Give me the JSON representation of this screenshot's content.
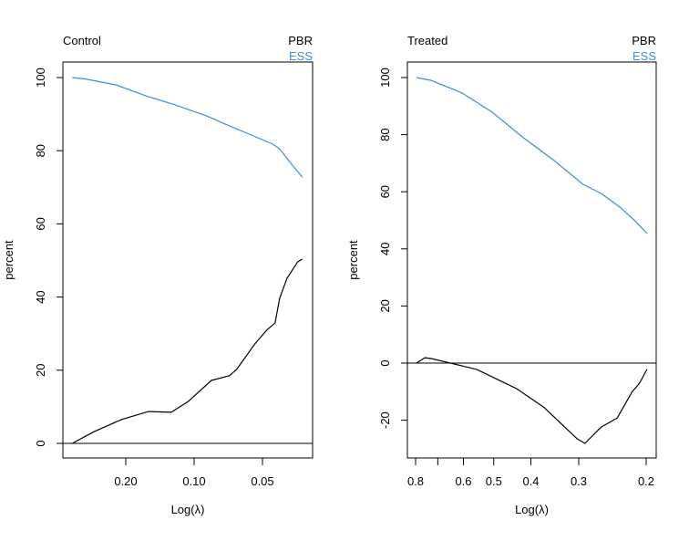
{
  "colors": {
    "PBR": "#000000",
    "ESS": "#3d8be0"
  },
  "chart_data": [
    {
      "type": "line",
      "title": "Control",
      "legend": [
        "PBR",
        "ESS"
      ],
      "legend_placement": "top-right",
      "xlabel": "Log(λ)",
      "ylabel": "percent",
      "x_scale": "log, reversed",
      "xticks": [
        0.2,
        0.1,
        0.05
      ],
      "xtick_labels": [
        "0.20",
        "0.10",
        "0.05"
      ],
      "xlim": [
        0.344,
        0.0334
      ],
      "yticks": [
        0,
        20,
        40,
        60,
        80,
        100
      ],
      "ylim": [
        -4,
        104
      ],
      "reference_line_y": 0,
      "grid": false,
      "series": [
        {
          "name": "PBR",
          "x": [
            0.344,
            0.276,
            0.209,
            0.159,
            0.126,
            0.106,
            0.084,
            0.07,
            0.065,
            0.054,
            0.048,
            0.044,
            0.042,
            0.039,
            0.035,
            0.0334
          ],
          "y": [
            0,
            3.2,
            6.5,
            8.7,
            8.5,
            11.5,
            17.2,
            18.5,
            20.2,
            27.2,
            30.9,
            32.9,
            39.7,
            45.1,
            49.6,
            50.4
          ]
        },
        {
          "name": "ESS",
          "x": [
            0.344,
            0.3,
            0.221,
            0.163,
            0.121,
            0.088,
            0.07,
            0.056,
            0.045,
            0.042,
            0.038,
            0.0334
          ],
          "y": [
            100,
            99.6,
            98,
            95,
            92.5,
            89.5,
            86.8,
            84.3,
            81.8,
            80.5,
            77,
            72.8
          ]
        }
      ]
    },
    {
      "type": "line",
      "title": "Treated",
      "legend": [
        "PBR",
        "ESS"
      ],
      "legend_placement": "top-right",
      "xlabel": "Log(λ)",
      "ylabel": "percent",
      "x_scale": "log, reversed",
      "xticks": [
        0.8,
        0.7,
        0.6,
        0.5,
        0.4,
        0.3,
        0.2
      ],
      "xtick_labels": [
        "0.8",
        "",
        "0.6",
        "0.5",
        "0.4",
        "0.3",
        "0.2"
      ],
      "xlim": [
        0.83,
        0.19
      ],
      "yticks": [
        -20,
        0,
        20,
        40,
        60,
        80,
        100
      ],
      "ylim": [
        -33,
        106
      ],
      "reference_line_y": 0,
      "grid": false,
      "series": [
        {
          "name": "PBR",
          "x": [
            0.796,
            0.757,
            0.729,
            0.554,
            0.435,
            0.369,
            0.303,
            0.289,
            0.262,
            0.238,
            0.218,
            0.208,
            0.199
          ],
          "y": [
            0,
            1.9,
            1.6,
            -2.2,
            -9,
            -15.6,
            -26.5,
            -28.1,
            -22.4,
            -19.2,
            -10.2,
            -7,
            -2.2
          ]
        },
        {
          "name": "ESS",
          "x": [
            0.796,
            0.729,
            0.605,
            0.505,
            0.421,
            0.35,
            0.292,
            0.262,
            0.234,
            0.214,
            0.199
          ],
          "y": [
            100,
            99,
            94.6,
            87.9,
            79.2,
            71.2,
            62.6,
            59.4,
            54.6,
            49.8,
            45.4
          ]
        }
      ]
    }
  ]
}
